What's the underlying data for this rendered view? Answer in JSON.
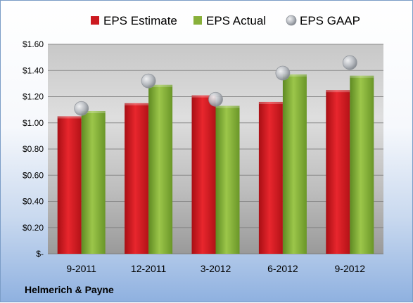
{
  "chart_data": {
    "type": "bar",
    "title": "",
    "xlabel": "",
    "ylabel": "",
    "categories": [
      "9-2011",
      "12-2011",
      "3-2012",
      "6-2012",
      "9-2012"
    ],
    "series": [
      {
        "name": "EPS Estimate",
        "kind": "bar",
        "color": "#d91e25",
        "values": [
          1.05,
          1.15,
          1.21,
          1.16,
          1.25
        ]
      },
      {
        "name": "EPS Actual",
        "kind": "bar",
        "color": "#8cb43a",
        "values": [
          1.09,
          1.29,
          1.13,
          1.37,
          1.36
        ]
      },
      {
        "name": "EPS GAAP",
        "kind": "marker",
        "color": "#b4b8be",
        "values": [
          1.11,
          1.32,
          1.18,
          1.38,
          1.46
        ]
      }
    ],
    "ylim": [
      0,
      1.6
    ],
    "yticks": [
      0,
      0.2,
      0.4,
      0.6,
      0.8,
      1.0,
      1.2,
      1.4,
      1.6
    ],
    "ytick_labels": [
      "$-",
      "$0.20",
      "$0.40",
      "$0.60",
      "$0.80",
      "$1.00",
      "$1.20",
      "$1.40",
      "$1.60"
    ],
    "grid": true,
    "legend_position": "top-center",
    "footer": "Helmerich & Payne"
  }
}
